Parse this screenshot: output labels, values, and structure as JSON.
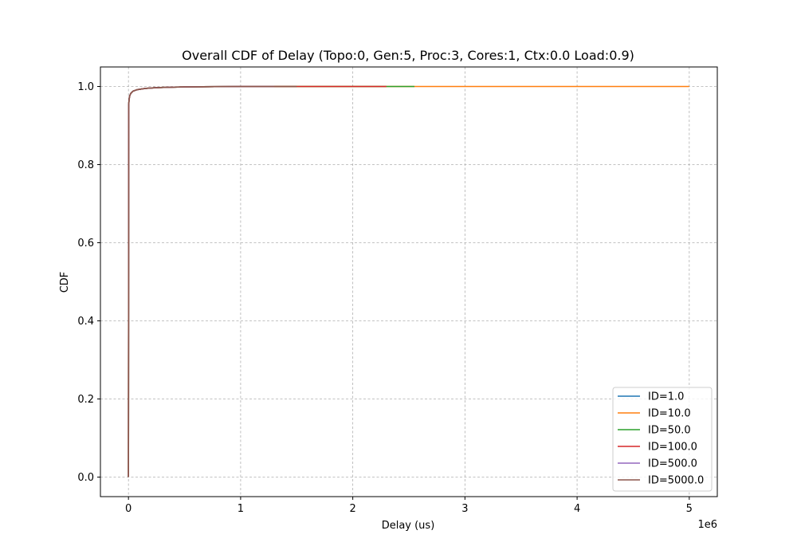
{
  "chart_data": {
    "type": "line",
    "title": "Overall CDF of Delay (Topo:0, Gen:5, Proc:3, Cores:1, Ctx:0.0 Load:0.9)",
    "xlabel": "Delay (us)",
    "ylabel": "CDF",
    "x_offset_text": "1e6",
    "xlim": [
      -250000,
      5250000
    ],
    "ylim": [
      -0.05,
      1.05
    ],
    "x_ticks": [
      0,
      1000000,
      2000000,
      3000000,
      4000000,
      5000000
    ],
    "x_tick_labels": [
      "0",
      "1",
      "2",
      "3",
      "4",
      "5"
    ],
    "y_ticks": [
      0.0,
      0.2,
      0.4,
      0.6,
      0.8,
      1.0
    ],
    "y_tick_labels": [
      "0.0",
      "0.2",
      "0.4",
      "0.6",
      "0.8",
      "1.0"
    ],
    "grid": true,
    "legend_position": "lower right",
    "series": [
      {
        "name": "ID=1.0",
        "color": "#1f77b4",
        "x": [
          0,
          2000,
          5000,
          10000,
          20000,
          40000,
          80000,
          150000,
          250000,
          500000,
          1000000,
          1500000
        ],
        "y": [
          0.0,
          0.95,
          0.965,
          0.975,
          0.982,
          0.988,
          0.992,
          0.995,
          0.997,
          0.999,
          1.0,
          1.0
        ]
      },
      {
        "name": "ID=10.0",
        "color": "#ff7f0e",
        "x": [
          0,
          2000,
          5000,
          10000,
          20000,
          40000,
          80000,
          150000,
          250000,
          500000,
          1000000,
          5000000
        ],
        "y": [
          0.0,
          0.95,
          0.965,
          0.975,
          0.982,
          0.988,
          0.992,
          0.995,
          0.997,
          0.999,
          1.0,
          1.0
        ]
      },
      {
        "name": "ID=50.0",
        "color": "#2ca02c",
        "x": [
          0,
          2000,
          5000,
          10000,
          20000,
          40000,
          80000,
          150000,
          250000,
          500000,
          1000000,
          2550000
        ],
        "y": [
          0.0,
          0.95,
          0.965,
          0.975,
          0.982,
          0.988,
          0.992,
          0.995,
          0.997,
          0.999,
          1.0,
          1.0
        ]
      },
      {
        "name": "ID=100.0",
        "color": "#d62728",
        "x": [
          0,
          2000,
          5000,
          10000,
          20000,
          40000,
          80000,
          150000,
          250000,
          500000,
          1000000,
          2300000
        ],
        "y": [
          0.0,
          0.95,
          0.965,
          0.975,
          0.982,
          0.988,
          0.992,
          0.995,
          0.997,
          0.999,
          1.0,
          1.0
        ]
      },
      {
        "name": "ID=500.0",
        "color": "#9467bd",
        "x": [
          0,
          2000,
          5000,
          10000,
          20000,
          40000,
          80000,
          150000,
          250000,
          500000,
          1000000,
          1300000
        ],
        "y": [
          0.0,
          0.95,
          0.965,
          0.975,
          0.982,
          0.988,
          0.992,
          0.995,
          0.997,
          0.999,
          1.0,
          1.0
        ]
      },
      {
        "name": "ID=5000.0",
        "color": "#8c564b",
        "x": [
          0,
          2000,
          5000,
          10000,
          20000,
          40000,
          80000,
          150000,
          250000,
          500000,
          1000000,
          1500000
        ],
        "y": [
          0.0,
          0.95,
          0.965,
          0.975,
          0.982,
          0.988,
          0.992,
          0.995,
          0.997,
          0.999,
          1.0,
          1.0
        ]
      }
    ]
  }
}
